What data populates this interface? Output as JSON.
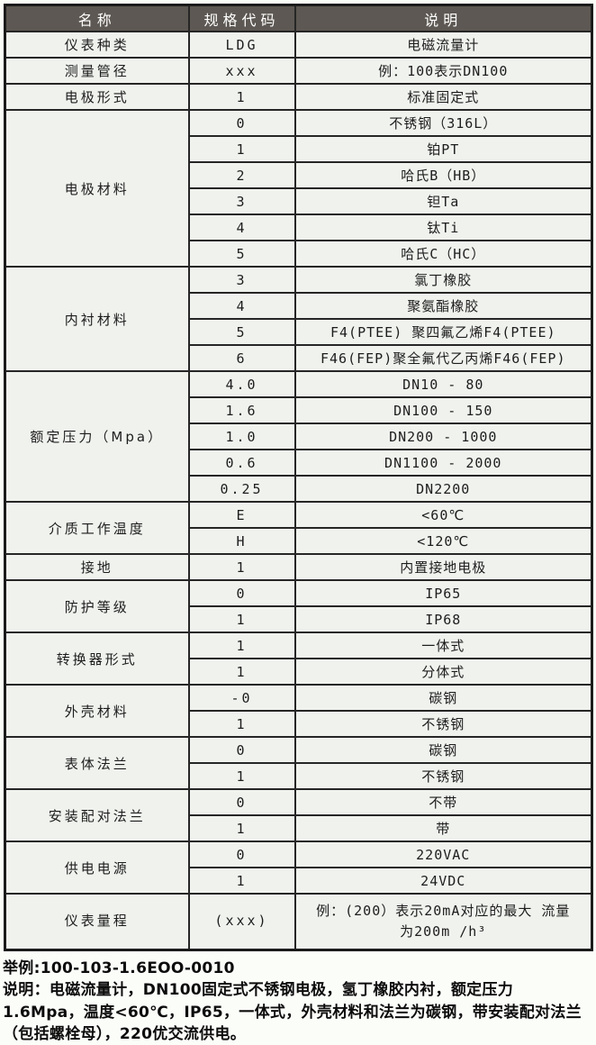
{
  "table": {
    "headers": [
      "名称",
      "规格代码",
      "说明"
    ],
    "groups": [
      {
        "name": "仪表种类",
        "rows": [
          {
            "code": "LDG",
            "desc": "电磁流量计"
          }
        ]
      },
      {
        "name": "测量管径",
        "rows": [
          {
            "code": "xxx",
            "desc": "例：100表示DN100"
          }
        ]
      },
      {
        "name": "电极形式",
        "rows": [
          {
            "code": "1",
            "desc": "标准固定式"
          }
        ]
      },
      {
        "name": "电极材料",
        "rows": [
          {
            "code": "0",
            "desc": "不锈钢（316L）"
          },
          {
            "code": "1",
            "desc": "铂PT"
          },
          {
            "code": "2",
            "desc": "哈氏B（HB）"
          },
          {
            "code": "3",
            "desc": "钽Ta"
          },
          {
            "code": "4",
            "desc": "钛Ti"
          },
          {
            "code": "5",
            "desc": "哈氏C（HC）"
          }
        ]
      },
      {
        "name": "内衬材料",
        "rows": [
          {
            "code": "3",
            "desc": "氯丁橡胶"
          },
          {
            "code": "4",
            "desc": "聚氨酯橡胶"
          },
          {
            "code": "5",
            "desc": "F4(PTEE) 聚四氟乙烯F4(PTEE)"
          },
          {
            "code": "6",
            "desc": "F46(FEP)聚全氟代乙丙烯F46(FEP)"
          }
        ]
      },
      {
        "name": "额定压力（Mpa）",
        "rows": [
          {
            "code": "4.0",
            "desc": "DN10 - 80"
          },
          {
            "code": "1.6",
            "desc": "DN100 - 150"
          },
          {
            "code": "1.0",
            "desc": "DN200 - 1000"
          },
          {
            "code": "0.6",
            "desc": "DN1100 - 2000"
          },
          {
            "code": "0.25",
            "desc": "DN2200"
          }
        ]
      },
      {
        "name": "介质工作温度",
        "rows": [
          {
            "code": "E",
            "desc": "<60℃"
          },
          {
            "code": "H",
            "desc": "<120℃"
          }
        ]
      },
      {
        "name": "接地",
        "rows": [
          {
            "code": "1",
            "desc": "内置接地电极"
          }
        ]
      },
      {
        "name": "防护等级",
        "rows": [
          {
            "code": "0",
            "desc": "IP65"
          },
          {
            "code": "1",
            "desc": "IP68"
          }
        ]
      },
      {
        "name": "转换器形式",
        "rows": [
          {
            "code": "1",
            "desc": "一体式"
          },
          {
            "code": "1",
            "desc": "分体式"
          }
        ]
      },
      {
        "name": "外壳材料",
        "rows": [
          {
            "code": "-0",
            "desc": "碳钢"
          },
          {
            "code": "1",
            "desc": "不锈钢"
          }
        ]
      },
      {
        "name": "表体法兰",
        "rows": [
          {
            "code": "0",
            "desc": "碳钢"
          },
          {
            "code": "1",
            "desc": "不锈钢"
          }
        ]
      },
      {
        "name": "安装配对法兰",
        "rows": [
          {
            "code": "0",
            "desc": "不带"
          },
          {
            "code": "1",
            "desc": "带"
          }
        ]
      },
      {
        "name": "供电电源",
        "rows": [
          {
            "code": "0",
            "desc": "220VAC"
          },
          {
            "code": "1",
            "desc": "24VDC"
          }
        ]
      },
      {
        "name": "仪表量程",
        "rows": [
          {
            "code": "(xxx)",
            "desc": "例：(200）表示20mA对应的最大 流量为200m /h³",
            "tall": true
          }
        ]
      }
    ]
  },
  "notes": {
    "example": "举例:100-103-1.6EOO-0010",
    "description": "说明：电磁流量计，DN100固定式不锈钢电极，氢丁橡胶内衬，额定压力1.6Mpa，温度<60℃，IP65，一体式，外壳材料和法兰为碳钢，带安装配对法兰（包括螺栓母），220优交流供电。"
  },
  "colors": {
    "header_bg": "#5d5853",
    "header_text": "#ffffff",
    "cell_bg": "#eff2ed",
    "border": "#262626",
    "page_bg": "#fbfdf9"
  }
}
